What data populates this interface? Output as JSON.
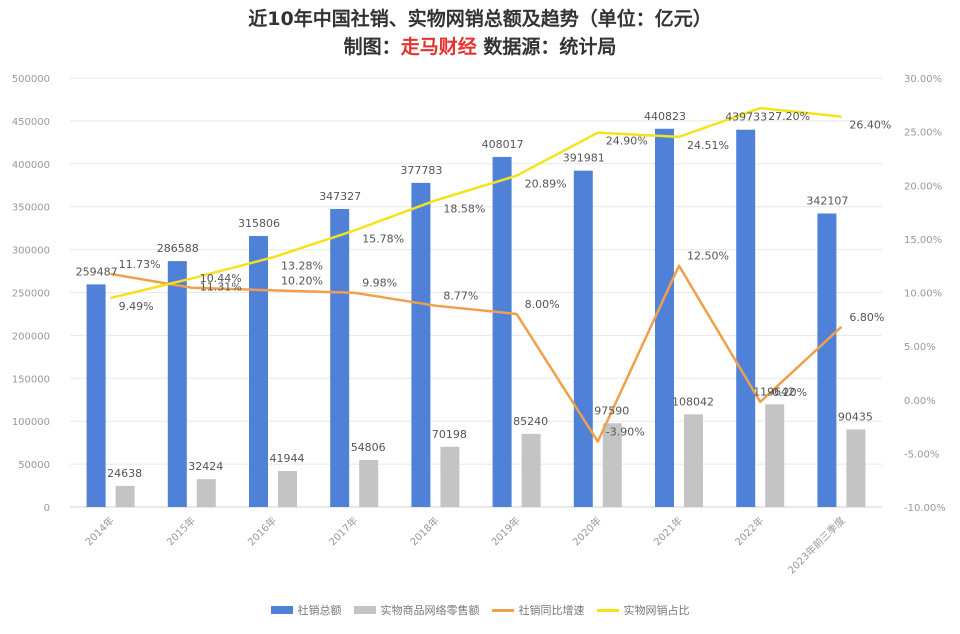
{
  "title": "近10年中国社销、实物网销总额及趋势（单位：亿元）",
  "subtitle": {
    "prefix": "制图：",
    "brand": "走马财经",
    "source": " 数据源：统计局"
  },
  "colors": {
    "total_retail": "#4f81d8",
    "online_retail": "#c4c4c4",
    "growth": "#f0a04b",
    "share": "#f5e21b",
    "axis_text": "#999999",
    "grid": "#e8e8e8"
  },
  "chart_data": {
    "type": "bar",
    "categories": [
      "2014年",
      "2015年",
      "2016年",
      "2017年",
      "2018年",
      "2019年",
      "2020年",
      "2021年",
      "2022年",
      "2023年前三季度"
    ],
    "series": [
      {
        "name": "社销总额",
        "kind": "bar",
        "axis": "left",
        "values": [
          259487,
          286588,
          315806,
          347327,
          377783,
          408017,
          391981,
          440823,
          439733,
          342107
        ],
        "labels": [
          "259487",
          "286588",
          "315806",
          "347327",
          "377783",
          "408017",
          "391981",
          "440823",
          "439733",
          "342107"
        ]
      },
      {
        "name": "实物商品网络零售额",
        "kind": "bar",
        "axis": "left",
        "values": [
          24638,
          32424,
          41944,
          54806,
          70198,
          85240,
          97590,
          108042,
          119642,
          90435
        ],
        "labels": [
          "24638",
          "32424",
          "41944",
          "54806",
          "70198",
          "85240",
          "97590",
          "108042",
          "119642",
          "90435"
        ]
      },
      {
        "name": "社销同比增速",
        "kind": "line",
        "axis": "right",
        "values": [
          11.73,
          10.44,
          10.2,
          9.98,
          8.77,
          8.0,
          -3.9,
          12.5,
          -0.2,
          6.8
        ],
        "labels": [
          "11.73%",
          "10.44%",
          "10.20%",
          "9.98%",
          "8.77%",
          "8.00%",
          "-3.90%",
          "12.50%",
          "-0.20%",
          "6.80%"
        ]
      },
      {
        "name": "实物网销占比",
        "kind": "line",
        "axis": "right",
        "values": [
          9.49,
          11.31,
          13.28,
          15.78,
          18.58,
          20.89,
          24.9,
          24.51,
          27.2,
          26.4
        ],
        "labels": [
          "9.49%",
          "11.31%",
          "13.28%",
          "15.78%",
          "18.58%",
          "20.89%",
          "24.90%",
          "24.51%",
          "27.20%",
          "26.40%"
        ]
      }
    ],
    "y_left": {
      "min": 0,
      "max": 500000,
      "step": 50000,
      "ticks": [
        "0",
        "50000",
        "100000",
        "150000",
        "200000",
        "250000",
        "300000",
        "350000",
        "400000",
        "450000",
        "500000"
      ]
    },
    "y_right": {
      "min": -10,
      "max": 30,
      "step": 5,
      "ticks": [
        "-10.00%",
        "-5.00%",
        "0.00%",
        "5.00%",
        "10.00%",
        "15.00%",
        "20.00%",
        "25.00%",
        "30.00%"
      ]
    },
    "grid": true,
    "legend_position": "bottom"
  }
}
